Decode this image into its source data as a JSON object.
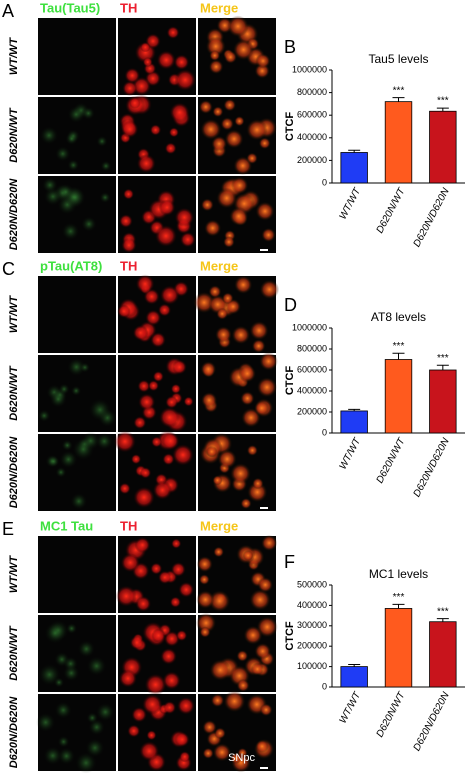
{
  "panels": [
    {
      "letter": "A",
      "columns": [
        "Tau(Tau5)",
        "TH",
        "Merge"
      ],
      "rows": [
        "WT/WT",
        "D620N/WT",
        "D620N/D620N"
      ]
    },
    {
      "letter": "C",
      "columns": [
        "pTau(AT8)",
        "TH",
        "Merge"
      ],
      "rows": [
        "WT/WT",
        "D620N/WT",
        "D620N/D620N"
      ]
    },
    {
      "letter": "E",
      "columns": [
        "MC1 Tau",
        "TH",
        "Merge"
      ],
      "rows": [
        "WT/WT",
        "D620N/WT",
        "D620N/D620N"
      ],
      "region": "SNpc"
    }
  ],
  "chart_data": [
    {
      "type": "bar",
      "panel_label": "B",
      "title": "Tau5 levels",
      "y_label": "CTCF",
      "categories": [
        "WT/WT",
        "D620N/WT",
        "D620N/D620N"
      ],
      "values": [
        270000,
        720000,
        635000
      ],
      "errors": [
        20000,
        35000,
        28000
      ],
      "significance": [
        null,
        "***",
        "***"
      ],
      "colors": [
        "#1f3cf5",
        "#ff5a1e",
        "#c8141c"
      ],
      "ylim": [
        0,
        1000000
      ],
      "yticks": [
        0,
        200000,
        400000,
        600000,
        800000,
        1000000
      ]
    },
    {
      "type": "bar",
      "panel_label": "D",
      "title": "AT8 levels",
      "y_label": "CTCF",
      "categories": [
        "WT/WT",
        "D620N/WT",
        "D620N/D620N"
      ],
      "values": [
        210000,
        700000,
        600000
      ],
      "errors": [
        15000,
        60000,
        45000
      ],
      "significance": [
        null,
        "***",
        "***"
      ],
      "colors": [
        "#1f3cf5",
        "#ff5a1e",
        "#c8141c"
      ],
      "ylim": [
        0,
        1000000
      ],
      "yticks": [
        0,
        200000,
        400000,
        600000,
        800000,
        1000000
      ]
    },
    {
      "type": "bar",
      "panel_label": "F",
      "title": "MC1 levels",
      "y_label": "CTCF",
      "categories": [
        "WT/WT",
        "D620N/WT",
        "D620N/D620N"
      ],
      "values": [
        100000,
        385000,
        320000
      ],
      "errors": [
        10000,
        20000,
        15000
      ],
      "significance": [
        null,
        "***",
        "***"
      ],
      "colors": [
        "#1f3cf5",
        "#ff5a1e",
        "#c8141c"
      ],
      "ylim": [
        0,
        500000
      ],
      "yticks": [
        0,
        100000,
        200000,
        300000,
        400000,
        500000
      ]
    }
  ]
}
